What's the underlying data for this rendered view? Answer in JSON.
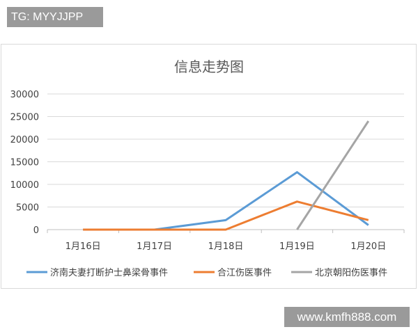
{
  "watermarks": {
    "top_left": "TG: MYYJJPP",
    "bottom_right": "www.kmfh888.com"
  },
  "chart_data": {
    "type": "line",
    "title": "信息走势图",
    "categories": [
      "1月16日",
      "1月17日",
      "1月18日",
      "1月19日",
      "1月20日"
    ],
    "ylim": [
      0,
      30000
    ],
    "yticks": [
      "0",
      "5000",
      "10000",
      "15000",
      "20000",
      "25000",
      "30000"
    ],
    "grid": true,
    "legend": "bottom",
    "series": [
      {
        "name": "济南夫妻打断护士鼻梁骨事件",
        "color": "#5b9bd5",
        "values": [
          0,
          0,
          2100,
          12700,
          1000
        ]
      },
      {
        "name": "合江伤医事件",
        "color": "#ed7d31",
        "values": [
          0,
          0,
          0,
          6200,
          2100
        ]
      },
      {
        "name": "北京朝阳伤医事件",
        "color": "#a5a5a5",
        "values": [
          null,
          null,
          null,
          0,
          24000
        ]
      }
    ]
  }
}
